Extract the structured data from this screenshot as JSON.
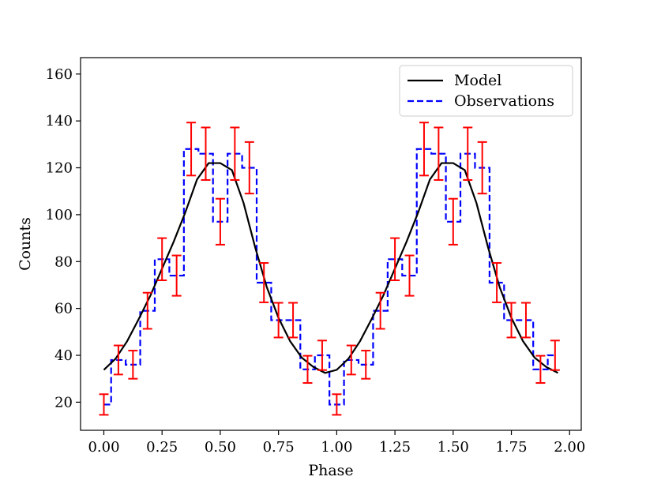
{
  "chart_data": {
    "type": "line",
    "title": "",
    "xlabel": "Phase",
    "ylabel": "Counts",
    "xlim": [
      -0.1,
      2.05
    ],
    "ylim": [
      8,
      167
    ],
    "x_ticks": [
      0.0,
      0.25,
      0.5,
      0.75,
      1.0,
      1.25,
      1.5,
      1.75,
      2.0
    ],
    "x_tick_labels": [
      "0.00",
      "0.25",
      "0.50",
      "0.75",
      "1.00",
      "1.25",
      "1.50",
      "1.75",
      "2.00"
    ],
    "y_ticks": [
      20,
      40,
      60,
      80,
      100,
      120,
      140,
      160
    ],
    "y_tick_labels": [
      "20",
      "40",
      "60",
      "80",
      "100",
      "120",
      "140",
      "160"
    ],
    "legend": {
      "placement": "top-right",
      "entries": [
        "Model",
        "Observations"
      ]
    },
    "series": [
      {
        "name": "Model",
        "style": "solid",
        "color": "#000000",
        "x": [
          0.0,
          0.05,
          0.1,
          0.15,
          0.2,
          0.25,
          0.3,
          0.35,
          0.4,
          0.45,
          0.5,
          0.55,
          0.6,
          0.65,
          0.7,
          0.75,
          0.8,
          0.85,
          0.9,
          0.95,
          1.0,
          1.05,
          1.1,
          1.15,
          1.2,
          1.25,
          1.3,
          1.35,
          1.4,
          1.45,
          1.5,
          1.55,
          1.6,
          1.65,
          1.7,
          1.75,
          1.8,
          1.85,
          1.9,
          1.95
        ],
        "y": [
          33.8,
          38.5,
          46,
          55.5,
          65.5,
          77,
          88.5,
          101,
          115,
          122,
          122,
          119,
          105,
          86,
          69,
          56,
          46,
          39,
          35,
          32.5,
          33.8,
          38.5,
          46,
          55.5,
          65.5,
          77,
          88.5,
          101,
          115,
          122,
          122,
          119,
          105,
          86,
          69,
          56,
          46,
          39,
          35,
          32.5
        ]
      },
      {
        "name": "Observations",
        "style": "dashed-steps-mid",
        "color": "#0000ff",
        "errorbar_color": "#ff0000",
        "x": [
          0.0,
          0.0625,
          0.125,
          0.1875,
          0.25,
          0.3125,
          0.375,
          0.4375,
          0.5,
          0.5625,
          0.625,
          0.6875,
          0.75,
          0.8125,
          0.875,
          0.9375,
          1.0,
          1.0625,
          1.125,
          1.1875,
          1.25,
          1.3125,
          1.375,
          1.4375,
          1.5,
          1.5625,
          1.625,
          1.6875,
          1.75,
          1.8125,
          1.875,
          1.9375
        ],
        "y": [
          19,
          38,
          36,
          59,
          81,
          74,
          128,
          126,
          97,
          126,
          120,
          71,
          55,
          55,
          34,
          40,
          19,
          38,
          36,
          59,
          81,
          74,
          128,
          126,
          97,
          126,
          120,
          71,
          55,
          55,
          34,
          40
        ],
        "yerr": [
          4.4,
          6.2,
          6.0,
          7.7,
          9.0,
          8.6,
          11.3,
          11.2,
          9.8,
          11.2,
          11.0,
          8.4,
          7.4,
          7.4,
          5.8,
          6.3,
          4.4,
          6.2,
          6.0,
          7.7,
          9.0,
          8.6,
          11.3,
          11.2,
          9.8,
          11.2,
          11.0,
          8.4,
          7.4,
          7.4,
          5.8,
          6.3
        ]
      }
    ]
  }
}
